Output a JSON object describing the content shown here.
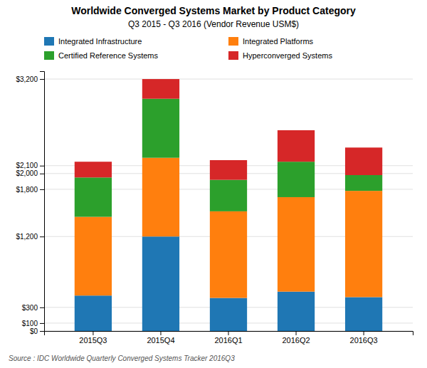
{
  "chart_data": {
    "type": "bar",
    "stacked": true,
    "title": "Worldwide Converged Systems Market by Product Category",
    "subtitle": "Q3 2015 - Q3 2016 (Vendor Revenue USM$)",
    "categories": [
      "2015Q3",
      "2015Q4",
      "2016Q1",
      "2016Q2",
      "2016Q3"
    ],
    "series": [
      {
        "name": "Integrated Infrastructure",
        "values": [
          450,
          1200,
          420,
          500,
          430
        ]
      },
      {
        "name": "Integrated Platforms",
        "values": [
          1000,
          1000,
          1100,
          1200,
          1350
        ]
      },
      {
        "name": "Certified Reference Systems",
        "values": [
          500,
          750,
          400,
          450,
          200
        ]
      },
      {
        "name": "Hyperconverged Systems",
        "values": [
          200,
          250,
          250,
          400,
          350
        ]
      }
    ],
    "ylim": [
      0,
      3300
    ],
    "yticks": [
      {
        "value": 0,
        "label": "$0"
      },
      {
        "value": 100,
        "label": "$100"
      },
      {
        "value": 300,
        "label": "$300"
      },
      {
        "value": 1200,
        "label": "$1,200"
      },
      {
        "value": 1800,
        "label": "$1,800"
      },
      {
        "value": 2000,
        "label": "$2,000"
      },
      {
        "value": 2100,
        "label": "$2,100"
      },
      {
        "value": 3200,
        "label": "$3,200"
      }
    ],
    "grid": true,
    "legend": "top",
    "annotations": [
      "Source : IDC Worldwide Quarterly Converged Systems Tracker 2016Q3"
    ]
  }
}
